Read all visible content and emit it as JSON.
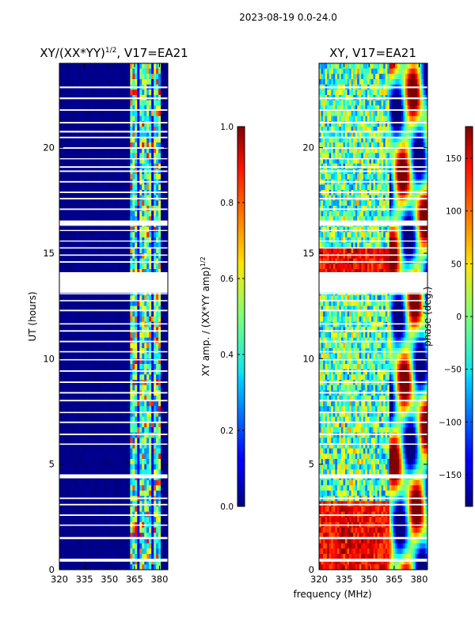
{
  "figure": {
    "suptitle": "2023-08-19 0.0-24.0",
    "shared_xlabel": "frequency (MHz)"
  },
  "colors": {
    "jet_min": "#00007f",
    "jet_max": "#7f0000",
    "gap": "#ffffff"
  },
  "chart_data": [
    {
      "type": "heatmap",
      "id": "amp",
      "title": "XY/(XX*YY)^1/2, V17=EA21",
      "title_main": "XY/(XX*YY)",
      "title_sup": "1/2",
      "title_tail": ", V17=EA21",
      "xlabel": "frequency (MHz)",
      "ylabel": "UT (hours)",
      "xlim": [
        320,
        385
      ],
      "ylim": [
        0,
        24
      ],
      "xticks": [
        320,
        335,
        350,
        365,
        380
      ],
      "yticks": [
        0,
        5,
        10,
        15,
        20
      ],
      "active_band_mhz": [
        362,
        381
      ],
      "colorbar": {
        "label_main": "XY amp. / (XX*YY amp)",
        "label_sup": "1/2",
        "range": [
          0.0,
          1.0
        ],
        "ticks": [
          "0.0",
          "0.2",
          "0.4",
          "0.6",
          "0.8",
          "1.0"
        ],
        "tick_values": [
          0.0,
          0.2,
          0.4,
          0.6,
          0.8,
          1.0
        ]
      }
    },
    {
      "type": "heatmap",
      "id": "phase",
      "title": "XY, V17=EA21",
      "xlabel": "frequency (MHz)",
      "ylabel": "",
      "xlim": [
        320,
        385
      ],
      "ylim": [
        0,
        24
      ],
      "xticks": [
        320,
        335,
        350,
        365,
        380
      ],
      "yticks": [
        0,
        5,
        10,
        15,
        20
      ],
      "colorbar": {
        "label": "phase (deg.)",
        "range": [
          -180,
          180
        ],
        "ticks": [
          "−150",
          "−100",
          "−50",
          "0",
          "50",
          "100",
          "150"
        ],
        "tick_values": [
          -150,
          -100,
          -50,
          0,
          50,
          100,
          150
        ]
      }
    }
  ],
  "flagged_gaps_hours": [
    [
      0.38,
      0.52
    ],
    [
      1.45,
      1.55
    ],
    [
      2.08,
      2.14
    ],
    [
      2.55,
      2.62
    ],
    [
      3.05,
      3.12
    ],
    [
      3.35,
      3.42
    ],
    [
      4.33,
      4.52
    ],
    [
      5.92,
      5.98
    ],
    [
      6.38,
      6.45
    ],
    [
      6.95,
      7.02
    ],
    [
      7.42,
      7.48
    ],
    [
      7.98,
      8.05
    ],
    [
      8.35,
      8.42
    ],
    [
      8.85,
      8.92
    ],
    [
      9.38,
      9.45
    ],
    [
      9.92,
      9.98
    ],
    [
      10.3,
      10.36
    ],
    [
      10.78,
      10.85
    ],
    [
      11.28,
      11.35
    ],
    [
      11.62,
      11.68
    ],
    [
      12.25,
      12.32
    ],
    [
      12.72,
      12.78
    ],
    [
      13.05,
      13.1
    ],
    [
      13.12,
      14.1
    ],
    [
      14.55,
      14.62
    ],
    [
      14.88,
      14.94
    ],
    [
      15.22,
      15.28
    ],
    [
      15.55,
      15.6
    ],
    [
      16.05,
      16.1
    ],
    [
      16.3,
      16.55
    ],
    [
      17.05,
      17.12
    ],
    [
      17.55,
      17.62
    ],
    [
      17.85,
      17.92
    ],
    [
      18.35,
      18.42
    ],
    [
      18.85,
      18.92
    ],
    [
      19.05,
      19.12
    ],
    [
      19.45,
      19.5
    ],
    [
      19.95,
      20.02
    ],
    [
      20.45,
      20.52
    ],
    [
      20.72,
      20.8
    ],
    [
      21.15,
      21.22
    ],
    [
      21.75,
      21.82
    ],
    [
      22.3,
      22.38
    ],
    [
      22.82,
      22.9
    ]
  ]
}
